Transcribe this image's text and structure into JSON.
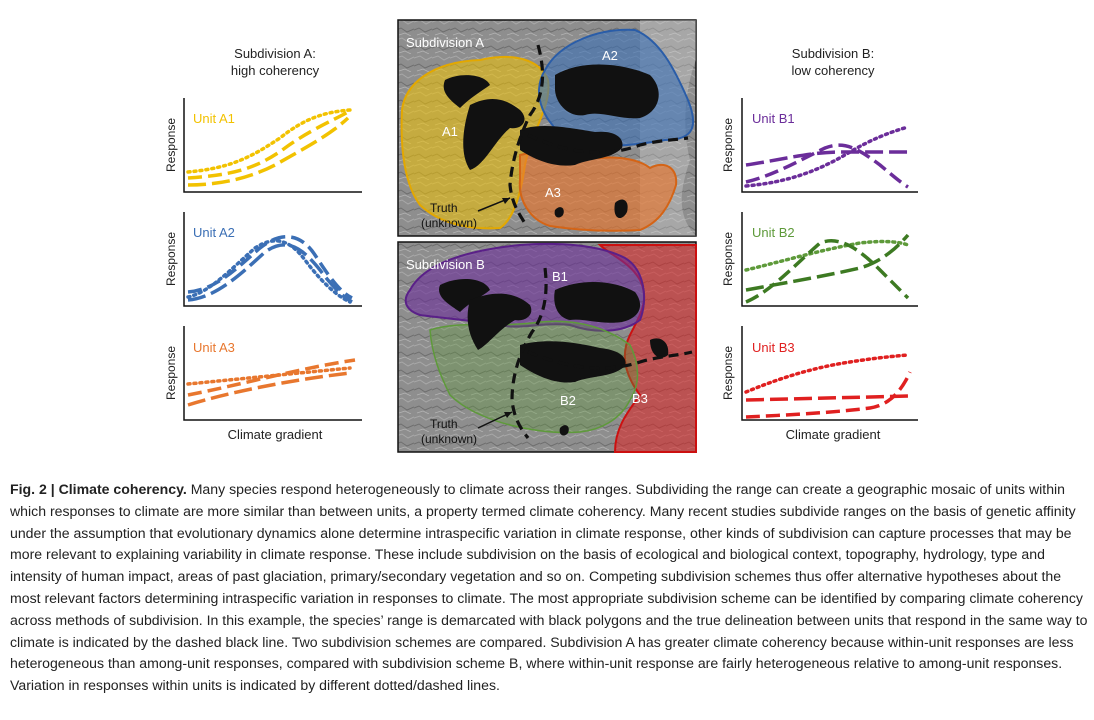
{
  "figure": {
    "colors": {
      "A1": "#f2c200",
      "A2": "#3b6fb5",
      "A3": "#e8772e",
      "B1": "#6b2d9a",
      "B2": "#5e9a3a",
      "B3": "#e02020",
      "black": "#111111",
      "terrain": "#8c8c8c"
    },
    "left_panel": {
      "title_line1": "Subdivision A:",
      "title_line2": "high coherency",
      "ylabel": "Response",
      "xlabel": "Climate gradient",
      "units": [
        "Unit A1",
        "Unit A2",
        "Unit A3"
      ]
    },
    "right_panel": {
      "title_line1": "Subdivision B:",
      "title_line2": "low coherency",
      "ylabel": "Response",
      "xlabel": "Climate gradient",
      "units": [
        "Unit B1",
        "Unit B2",
        "Unit B3"
      ]
    },
    "map_a": {
      "title": "Subdivision A",
      "labels": {
        "a1": "A1",
        "a2": "A2",
        "a3": "A3"
      },
      "truth_line1": "Truth",
      "truth_line2": "(unknown)"
    },
    "map_b": {
      "title": "Subdivision B",
      "labels": {
        "b1": "B1",
        "b2": "B2",
        "b3": "B3"
      },
      "truth_line1": "Truth",
      "truth_line2": "(unknown)"
    }
  },
  "caption": {
    "label": "Fig. 2 | Climate coherency.",
    "text": " Many species respond heterogeneously to climate across their ranges. Subdividing the range can create a geographic mosaic of units within which responses to climate are more similar than between units, a property termed climate coherency. Many recent studies subdivide ranges on the basis of genetic affinity under the assumption that evolutionary dynamics alone determine intraspecific variation in climate response, other kinds of subdivision can capture processes that may be more relevant to explaining variability in climate response. These include subdivision on the basis of ecological and biological context, topography, hydrology, type and intensity of human impact, areas of past glaciation, primary/secondary vegetation and so on. Competing subdivision schemes thus offer alternative hypotheses about the most relevant factors determining intraspecific variation in responses to climate. The most appropriate subdivision scheme can be identified by comparing climate coherency across methods of subdivision. In this example, the species’ range is demarcated with black polygons and the true delineation between units that respond in the same way to climate is indicated by the dashed black line. Two subdivision schemes are compared. Subdivision A has greater climate coherency because within-unit responses are less heterogeneous than among-unit responses, compared with subdivision scheme B, where within-unit response are fairly heterogeneous relative to among-unit responses. Variation in responses within units is indicated by different dotted/dashed lines."
  }
}
